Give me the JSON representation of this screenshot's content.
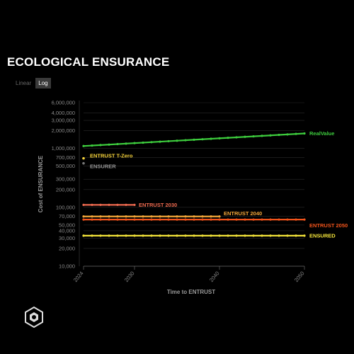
{
  "header": {
    "title": "ECOLOGICAL ENSURANCE"
  },
  "toggle": {
    "linear_label": "Linear",
    "log_label": "Log",
    "active": "Log"
  },
  "chart_data": {
    "type": "line",
    "title": "ECOLOGICAL ENSURANCE",
    "xlabel": "Time to ENTRUST",
    "ylabel": "Cost of ENSURANCE",
    "yscale": "log",
    "ylim": [
      10000,
      6000000
    ],
    "xlim": [
      2024,
      2050
    ],
    "xticks": [
      2024,
      2030,
      2040,
      2050
    ],
    "yticks": [
      10000,
      20000,
      30000,
      40000,
      50000,
      70000,
      100000,
      200000,
      300000,
      500000,
      700000,
      1000000,
      2000000,
      3000000,
      4000000,
      6000000
    ],
    "ytick_labels": [
      "10,000",
      "20,000",
      "30,000",
      "40,000",
      "50,000",
      "70,000",
      "100,000",
      "200,000",
      "300,000",
      "500,000",
      "700,000",
      "1,000,000",
      "2,000,000",
      "3,000,000",
      "4,000,000",
      "6,000,000"
    ],
    "series": [
      {
        "name": "RealValue",
        "color": "#3dcc3d",
        "x_start": 2024,
        "x_end": 2050,
        "y_start": 1100000,
        "y_end": 1800000
      },
      {
        "name": "ENTRUST 2030",
        "color": "#f06a4f",
        "x_start": 2024,
        "x_end": 2030,
        "y_start": 110000,
        "y_end": 110000
      },
      {
        "name": "ENTRUST 2040",
        "color": "#f5a83a",
        "x_start": 2024,
        "x_end": 2040,
        "y_start": 70000,
        "y_end": 70000
      },
      {
        "name": "ENTRUST 2050",
        "color": "#f2541b",
        "x_start": 2024,
        "x_end": 2050,
        "y_start": 62000,
        "y_end": 62000
      },
      {
        "name": "ENSURED",
        "color": "#f5e53a",
        "x_start": 2024,
        "x_end": 2050,
        "y_start": 33000,
        "y_end": 33000
      }
    ],
    "points": [
      {
        "name": "ENTRUST T-Zero",
        "color": "#f5d23a",
        "x": 2024,
        "y": 680000
      },
      {
        "name": "ENSURER",
        "color": "#777777",
        "x": 2024,
        "y": 560000
      }
    ],
    "grid": true
  }
}
